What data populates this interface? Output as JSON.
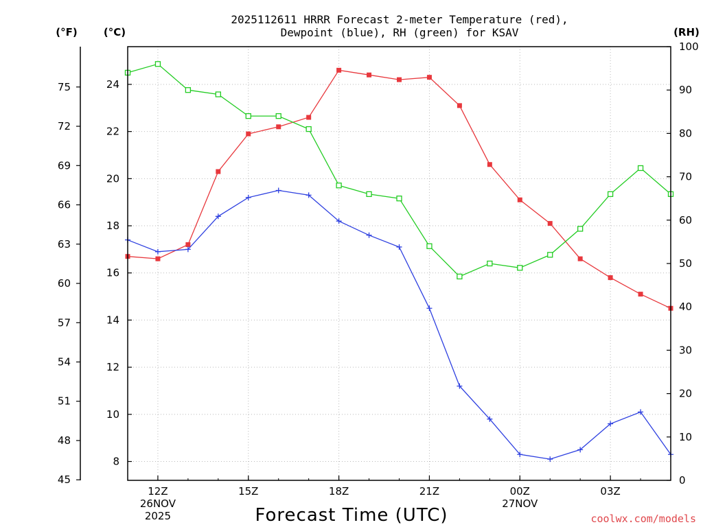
{
  "chart_data": {
    "type": "line",
    "title_lines": [
      "2025112611 HRRR Forecast 2-meter Temperature (red),",
      "Dewpoint (blue), RH (green) for KSAV"
    ],
    "xlabel": "Forecast Time (UTC)",
    "credit": "coolwx.com/models",
    "left_units": {
      "f": "(°F)",
      "c": "(°C)"
    },
    "right_unit": "(RH)",
    "x_hours": [
      11,
      12,
      13,
      14,
      15,
      16,
      17,
      18,
      19,
      20,
      21,
      22,
      23,
      24,
      25,
      26,
      27,
      28,
      29
    ],
    "x_ticks": [
      {
        "hour": 12,
        "lines": [
          "12Z",
          "26NOV",
          "2025"
        ]
      },
      {
        "hour": 15,
        "lines": [
          "15Z"
        ]
      },
      {
        "hour": 18,
        "lines": [
          "18Z"
        ]
      },
      {
        "hour": 21,
        "lines": [
          "21Z"
        ]
      },
      {
        "hour": 24,
        "lines": [
          "00Z",
          "27NOV"
        ]
      },
      {
        "hour": 27,
        "lines": [
          "03Z"
        ]
      }
    ],
    "celsius_axis": {
      "min": 7.2,
      "max": 25.6,
      "ticks": [
        8,
        10,
        12,
        14,
        16,
        18,
        20,
        22,
        24
      ]
    },
    "fahrenheit_ticks": [
      45,
      48,
      51,
      54,
      57,
      60,
      63,
      66,
      69,
      72,
      75
    ],
    "rh_axis": {
      "min": 0,
      "max": 100,
      "ticks": [
        0,
        10,
        20,
        30,
        40,
        50,
        60,
        70,
        80,
        90,
        100
      ]
    },
    "series": [
      {
        "name": "Temperature",
        "unit": "°C",
        "color": "#e8383d",
        "marker": "filled-square",
        "values": [
          16.7,
          16.6,
          17.2,
          20.3,
          21.9,
          22.2,
          22.6,
          24.6,
          24.4,
          24.2,
          24.3,
          23.1,
          20.6,
          19.1,
          18.1,
          16.6,
          15.8,
          15.1,
          14.5
        ]
      },
      {
        "name": "Dewpoint",
        "unit": "°C",
        "color": "#2e40e0",
        "marker": "plus",
        "values": [
          17.4,
          16.9,
          17.0,
          18.4,
          19.2,
          19.5,
          19.3,
          18.2,
          17.6,
          17.1,
          14.5,
          11.2,
          9.8,
          8.3,
          8.1,
          8.5,
          9.6,
          10.1,
          8.3
        ]
      },
      {
        "name": "RH",
        "unit": "%",
        "color": "#22cc22",
        "marker": "open-square",
        "values": [
          94,
          96,
          90,
          89,
          84,
          84,
          81,
          68,
          66,
          65,
          54,
          47,
          50,
          49,
          52,
          58,
          66,
          72,
          66
        ]
      }
    ]
  }
}
